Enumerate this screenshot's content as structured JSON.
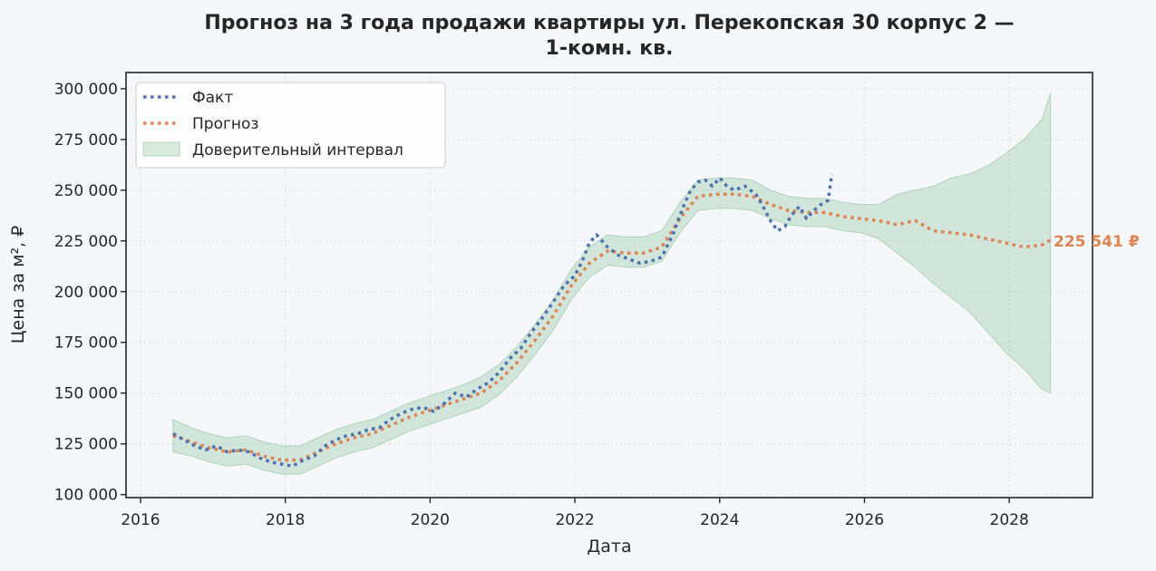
{
  "chart_data": {
    "type": "line",
    "title_line1": "Прогноз на 3 года продажи квартиры  ул. Перекопская 30 корпус 2 —",
    "title_line2": "1-комн. кв.",
    "xlabel": "Дата",
    "ylabel": "Цена за м², ₽",
    "xlim": [
      2015.8,
      2029.15
    ],
    "ylim": [
      98500,
      308000
    ],
    "grid": true,
    "legend_position": "top-left",
    "x_ticks": [
      {
        "value": 2016,
        "label": "2016"
      },
      {
        "value": 2018,
        "label": "2018"
      },
      {
        "value": 2020,
        "label": "2020"
      },
      {
        "value": 2022,
        "label": "2022"
      },
      {
        "value": 2024,
        "label": "2024"
      },
      {
        "value": 2026,
        "label": "2026"
      },
      {
        "value": 2028,
        "label": "2028"
      }
    ],
    "y_ticks": [
      {
        "value": 100000,
        "label": "100 000"
      },
      {
        "value": 125000,
        "label": "125 000"
      },
      {
        "value": 150000,
        "label": "150 000"
      },
      {
        "value": 175000,
        "label": "175 000"
      },
      {
        "value": 200000,
        "label": "200 000"
      },
      {
        "value": 225000,
        "label": "225 000"
      },
      {
        "value": 250000,
        "label": "250 000"
      },
      {
        "value": 275000,
        "label": "275 000"
      },
      {
        "value": 300000,
        "label": "300 000"
      }
    ],
    "legend": {
      "fact": "Факт",
      "forecast": "Прогноз",
      "interval": "Доверительный интервал"
    },
    "end_label": "225 541 ₽",
    "colors": {
      "fact": "#4c72b0",
      "forecast": "#dd8452",
      "interval_fill": "#55a868",
      "background": "#f5f7fa",
      "grid": "#d9dde3",
      "axes": "#262626"
    },
    "series": [
      {
        "name": "Факт",
        "x": [
          2016.45,
          2016.6,
          2016.75,
          2016.9,
          2017.05,
          2017.2,
          2017.35,
          2017.5,
          2017.65,
          2017.8,
          2017.95,
          2018.1,
          2018.25,
          2018.4,
          2018.55,
          2018.7,
          2018.85,
          2019.0,
          2019.15,
          2019.3,
          2019.45,
          2019.6,
          2019.75,
          2019.9,
          2020.05,
          2020.2,
          2020.35,
          2020.5,
          2020.65,
          2020.8,
          2020.95,
          2021.1,
          2021.25,
          2021.4,
          2021.55,
          2021.7,
          2021.85,
          2022.0,
          2022.1,
          2022.2,
          2022.3,
          2022.45,
          2022.6,
          2022.75,
          2022.9,
          2023.05,
          2023.2,
          2023.35,
          2023.5,
          2023.6,
          2023.7,
          2023.8,
          2023.9,
          2024.0,
          2024.1,
          2024.2,
          2024.35,
          2024.5,
          2024.6,
          2024.7,
          2024.8,
          2024.9,
          2025.0,
          2025.1,
          2025.2,
          2025.3,
          2025.4,
          2025.5,
          2025.55
        ],
        "values": [
          130000,
          127000,
          124000,
          122000,
          124000,
          121000,
          122000,
          121000,
          118000,
          116000,
          115000,
          114000,
          117000,
          119000,
          124000,
          127000,
          129000,
          130000,
          132000,
          133000,
          137000,
          140000,
          142000,
          143000,
          141000,
          145000,
          150000,
          148000,
          152000,
          155000,
          160000,
          167000,
          172000,
          180000,
          187000,
          195000,
          203000,
          208000,
          215000,
          224000,
          228000,
          222000,
          218000,
          216000,
          214000,
          215000,
          217000,
          228000,
          242000,
          250000,
          254000,
          255000,
          252000,
          256000,
          252000,
          250000,
          252000,
          248000,
          242000,
          235000,
          230000,
          232000,
          238000,
          242000,
          236000,
          240000,
          243000,
          245000,
          258000
        ]
      },
      {
        "name": "Прогноз",
        "x": [
          2016.45,
          2016.7,
          2016.95,
          2017.2,
          2017.45,
          2017.7,
          2017.95,
          2018.2,
          2018.45,
          2018.7,
          2018.95,
          2019.2,
          2019.45,
          2019.7,
          2019.95,
          2020.2,
          2020.45,
          2020.7,
          2020.95,
          2021.2,
          2021.45,
          2021.7,
          2021.95,
          2022.2,
          2022.45,
          2022.7,
          2022.95,
          2023.2,
          2023.45,
          2023.7,
          2023.95,
          2024.2,
          2024.45,
          2024.7,
          2024.95,
          2025.2,
          2025.45,
          2025.7,
          2025.95,
          2026.2,
          2026.45,
          2026.7,
          2026.95,
          2027.2,
          2027.45,
          2027.7,
          2027.95,
          2028.2,
          2028.45,
          2028.57
        ],
        "values": [
          129000,
          126000,
          123000,
          121000,
          122000,
          119000,
          117000,
          117000,
          121000,
          125000,
          128000,
          130000,
          134000,
          138000,
          141000,
          144000,
          147000,
          150000,
          156000,
          165000,
          176000,
          188000,
          203000,
          214000,
          220000,
          219000,
          219000,
          222000,
          236000,
          247000,
          248000,
          248000,
          247000,
          243000,
          240000,
          239000,
          239000,
          237000,
          236000,
          235000,
          233000,
          235000,
          230000,
          229000,
          228000,
          226000,
          224000,
          222000,
          223000,
          225541
        ]
      },
      {
        "name": "Доверительный интервал",
        "x": [
          2016.45,
          2016.7,
          2016.95,
          2017.2,
          2017.45,
          2017.7,
          2017.95,
          2018.2,
          2018.45,
          2018.7,
          2018.95,
          2019.2,
          2019.45,
          2019.7,
          2019.95,
          2020.2,
          2020.45,
          2020.7,
          2020.95,
          2021.2,
          2021.45,
          2021.7,
          2021.95,
          2022.2,
          2022.45,
          2022.7,
          2022.95,
          2023.2,
          2023.45,
          2023.7,
          2023.95,
          2024.2,
          2024.45,
          2024.7,
          2024.95,
          2025.2,
          2025.45,
          2025.7,
          2025.95,
          2026.2,
          2026.45,
          2026.7,
          2026.95,
          2027.2,
          2027.45,
          2027.7,
          2027.95,
          2028.2,
          2028.45,
          2028.57
        ],
        "upper": [
          137000,
          133000,
          130000,
          128000,
          129000,
          126000,
          124000,
          124000,
          128000,
          132000,
          135000,
          137000,
          141000,
          145000,
          148000,
          151000,
          154000,
          158000,
          164000,
          173000,
          184000,
          196000,
          211000,
          222000,
          228000,
          227000,
          227000,
          230000,
          244000,
          255000,
          256000,
          256000,
          255000,
          250000,
          247000,
          246000,
          246000,
          244000,
          243000,
          243000,
          248000,
          250000,
          252000,
          256000,
          258000,
          262000,
          268000,
          275000,
          285000,
          298000
        ],
        "lower": [
          121000,
          119000,
          116000,
          114000,
          115000,
          112000,
          110000,
          110000,
          114000,
          118000,
          121000,
          123000,
          127000,
          131000,
          134000,
          137000,
          140000,
          143000,
          149000,
          158000,
          169000,
          181000,
          196000,
          207000,
          213000,
          212000,
          212000,
          215000,
          229000,
          240000,
          241000,
          241000,
          240000,
          236000,
          233000,
          232000,
          232000,
          230000,
          229000,
          226000,
          219000,
          212000,
          204000,
          197000,
          190000,
          180000,
          170000,
          162000,
          152000,
          150000
        ]
      }
    ]
  }
}
